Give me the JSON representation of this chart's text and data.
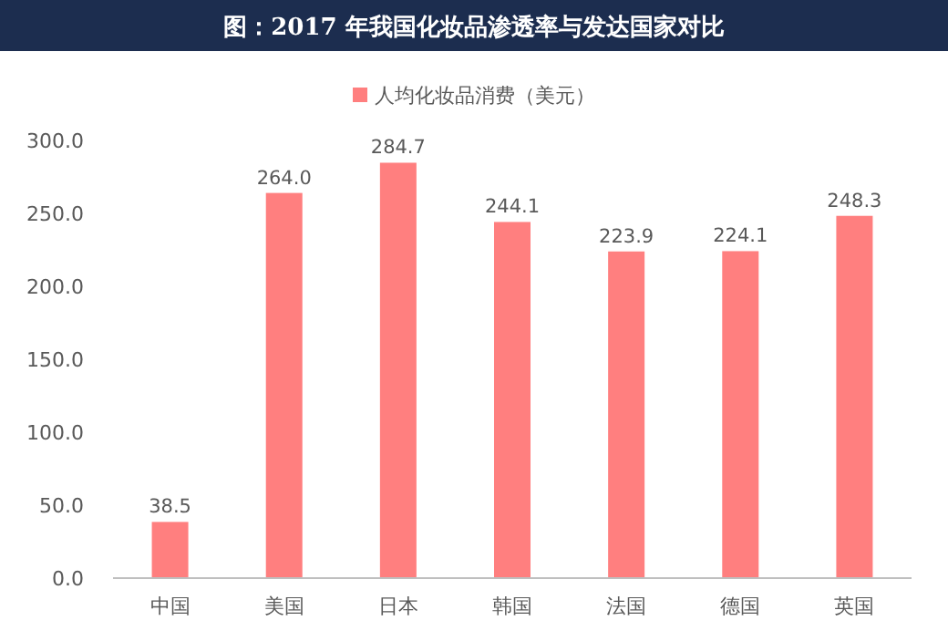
{
  "chart_data": {
    "type": "bar",
    "title": "图：2017 年我国化妆品渗透率与发达国家对比",
    "categories": [
      "中国",
      "美国",
      "日本",
      "韩国",
      "法国",
      "德国",
      "英国"
    ],
    "series": [
      {
        "name": "人均化妆品消费（美元）",
        "color": "#ff7f7f",
        "values": [
          38.5,
          264.0,
          284.7,
          244.1,
          223.9,
          224.1,
          248.3
        ]
      }
    ],
    "ylim": [
      0,
      300
    ],
    "yticks": [
      {
        "value": 0,
        "label": "0.0"
      },
      {
        "value": 50,
        "label": "50.0"
      },
      {
        "value": 100,
        "label": "100.0"
      },
      {
        "value": 150,
        "label": "150.0"
      },
      {
        "value": 200,
        "label": "200.0"
      },
      {
        "value": 250,
        "label": "250.0"
      },
      {
        "value": 300,
        "label": "300.0"
      }
    ],
    "value_labels": [
      "38.5",
      "264.0",
      "284.7",
      "244.1",
      "223.9",
      "224.1",
      "248.3"
    ],
    "legend": "top"
  }
}
